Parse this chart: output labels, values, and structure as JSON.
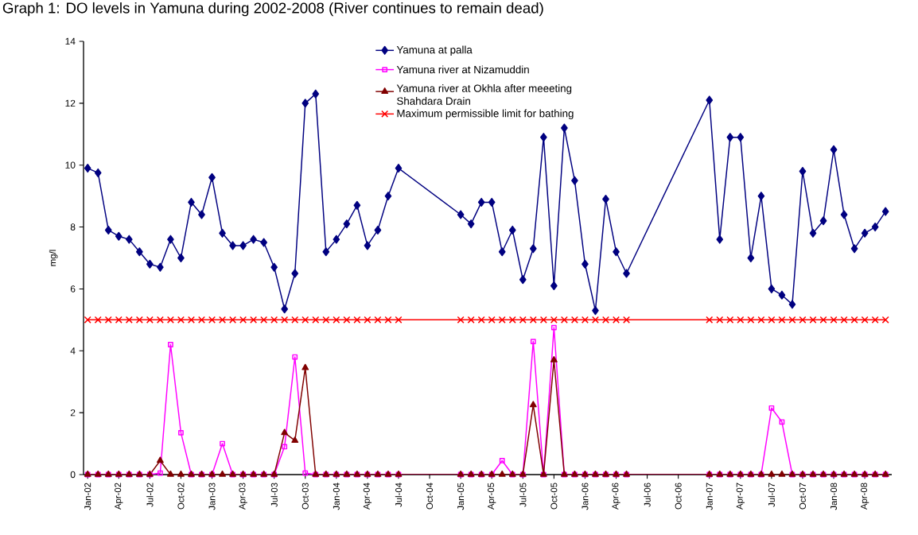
{
  "chart_data": {
    "type": "line",
    "title": "Graph 1: DO levels in Yamuna during 2002-2008 (River continues to remain dead)",
    "ylabel": "mg/l",
    "categories": [
      "Jan-02",
      null,
      null,
      "Apr-02",
      null,
      null,
      "Jul-02",
      null,
      null,
      "Oct-02",
      null,
      null,
      "Jan-03",
      null,
      null,
      "Apr-03",
      null,
      null,
      "Jul-03",
      null,
      null,
      "Oct-03",
      null,
      null,
      "Jan-04",
      null,
      null,
      "Apr-04",
      null,
      null,
      "Jul-04",
      null,
      null,
      "Oct-04",
      null,
      null,
      "Jan-05",
      null,
      null,
      "Apr-05",
      null,
      null,
      "Jul-05",
      null,
      null,
      "Oct-05",
      null,
      null,
      "Jan-06",
      null,
      null,
      "Apr-06",
      null,
      null,
      "Jul-06",
      null,
      null,
      "Oct-06",
      null,
      null,
      "Jan-07",
      null,
      null,
      "Apr-07",
      null,
      null,
      "Jul-07",
      null,
      null,
      "Oct-07",
      null,
      null,
      "Jan-08",
      null,
      null,
      "Apr-08",
      null,
      null
    ],
    "ylim": [
      0,
      14
    ],
    "yticks": [
      0,
      2,
      4,
      6,
      8,
      10,
      12,
      14
    ],
    "grid": false,
    "legend": "top",
    "series": [
      {
        "name": "Yamuna at palla",
        "color": "#000080",
        "marker": "diamond",
        "values": [
          9.9,
          9.75,
          7.9,
          7.7,
          7.6,
          7.2,
          6.8,
          6.7,
          7.6,
          7.0,
          8.8,
          8.4,
          9.6,
          7.8,
          7.4,
          7.4,
          7.6,
          7.5,
          6.7,
          5.35,
          6.5,
          12.0,
          12.3,
          7.2,
          7.6,
          8.1,
          8.7,
          7.4,
          7.9,
          9.0,
          9.9,
          null,
          null,
          null,
          null,
          null,
          8.4,
          8.1,
          8.8,
          8.8,
          7.2,
          7.9,
          6.3,
          7.3,
          10.9,
          6.1,
          11.2,
          9.5,
          6.8,
          5.3,
          8.9,
          7.2,
          6.5,
          null,
          null,
          null,
          null,
          null,
          null,
          null,
          12.1,
          7.6,
          10.9,
          10.9,
          7.0,
          9.0,
          6.0,
          5.8,
          5.5,
          9.8,
          7.8,
          8.2,
          10.5,
          8.4,
          7.3,
          7.8,
          8.0,
          8.5
        ]
      },
      {
        "name": "Yamuna river at Nizamuddin",
        "color": "#ff00ff",
        "marker": "square",
        "values": [
          0,
          0,
          0,
          0,
          0,
          0,
          0,
          0.05,
          4.2,
          1.35,
          0,
          0,
          0,
          1.0,
          0,
          0,
          0,
          0,
          0,
          0.9,
          3.8,
          0.05,
          0,
          0,
          0,
          0,
          0,
          0,
          0,
          0,
          0,
          null,
          null,
          null,
          null,
          null,
          0,
          0,
          0,
          0,
          0.45,
          0,
          0,
          4.3,
          0,
          4.75,
          0,
          0,
          0,
          0,
          0,
          0,
          0,
          null,
          null,
          null,
          null,
          null,
          null,
          null,
          0,
          0,
          0,
          0,
          0,
          0,
          2.15,
          1.7,
          0,
          0,
          0,
          0,
          0,
          0,
          0,
          0,
          0,
          0
        ]
      },
      {
        "name": "Yamuna river at Okhla after meeeting Shahdara Drain",
        "color": "#800000",
        "marker": "triangle",
        "values": [
          0,
          0,
          0,
          0,
          0,
          0,
          0,
          0.45,
          0,
          0,
          0,
          0,
          0,
          0,
          0,
          0,
          0,
          0,
          0,
          1.35,
          1.1,
          3.45,
          0,
          0,
          0,
          0,
          0,
          0,
          0,
          0,
          0,
          null,
          null,
          null,
          null,
          null,
          0,
          0,
          0,
          0,
          0,
          0,
          0,
          2.25,
          0,
          3.7,
          0,
          0,
          0,
          0,
          0,
          0,
          0,
          null,
          null,
          null,
          null,
          null,
          null,
          null,
          0,
          0,
          0,
          0,
          0,
          0,
          0,
          0,
          0,
          0,
          0,
          0,
          0,
          0,
          0,
          0,
          0,
          0
        ]
      },
      {
        "name": "Maximum permissible limit for bathing",
        "color": "#ff0000",
        "marker": "cross",
        "values": [
          5,
          5,
          5,
          5,
          5,
          5,
          5,
          5,
          5,
          5,
          5,
          5,
          5,
          5,
          5,
          5,
          5,
          5,
          5,
          5,
          5,
          5,
          5,
          5,
          5,
          5,
          5,
          5,
          5,
          5,
          5,
          null,
          null,
          null,
          null,
          null,
          5,
          5,
          5,
          5,
          5,
          5,
          5,
          5,
          5,
          5,
          5,
          5,
          5,
          5,
          5,
          5,
          5,
          null,
          null,
          null,
          null,
          null,
          null,
          null,
          5,
          5,
          5,
          5,
          5,
          5,
          5,
          5,
          5,
          5,
          5,
          5,
          5,
          5,
          5,
          5,
          5,
          5
        ]
      }
    ]
  }
}
